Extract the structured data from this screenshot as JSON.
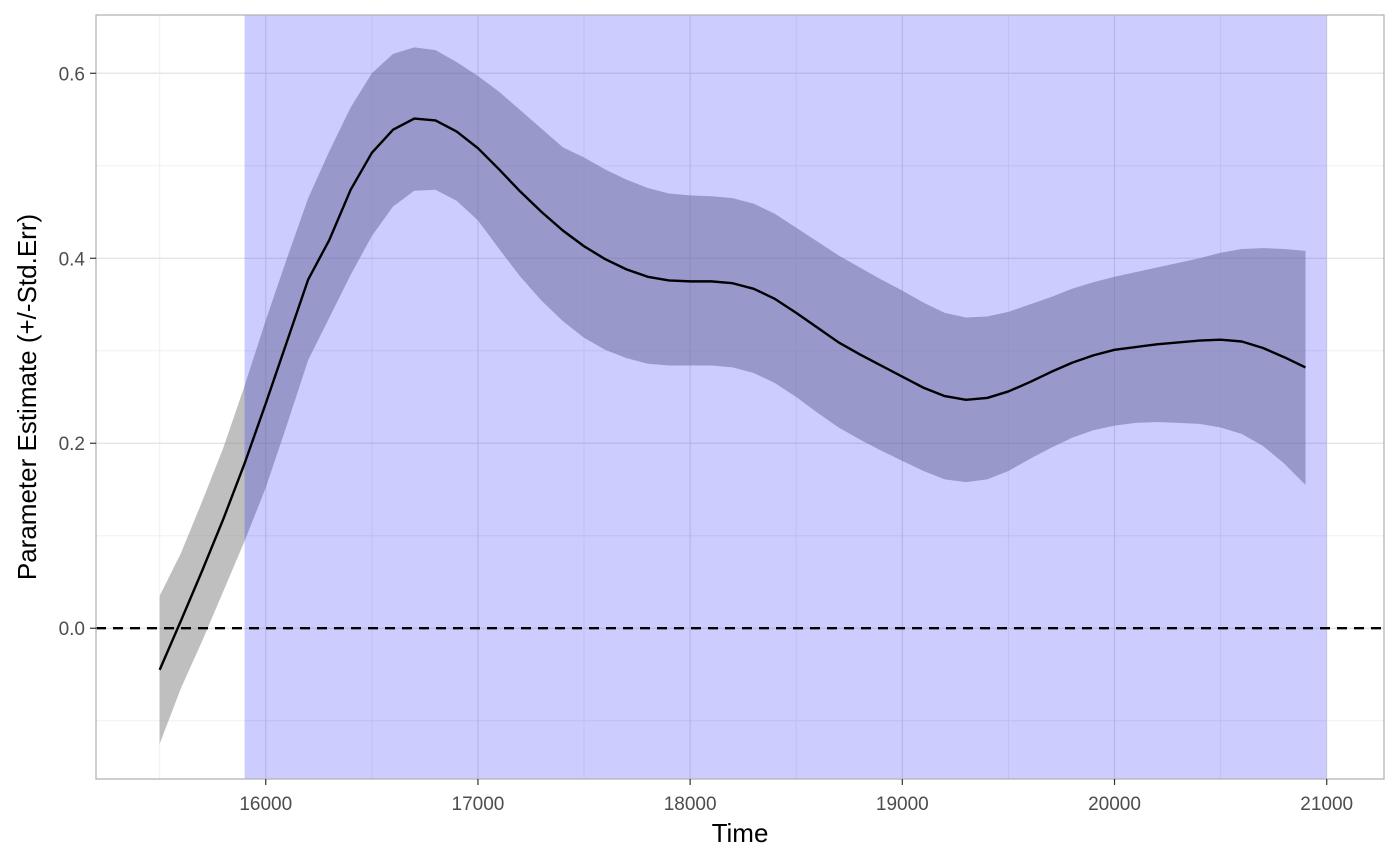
{
  "chart_data": {
    "type": "line",
    "title": "",
    "xlabel": "Time",
    "ylabel": "Parameter Estimate (+/-Std.Err)",
    "xlim": [
      15200,
      21270
    ],
    "ylim": [
      -0.163,
      0.663
    ],
    "x_ticks": [
      16000,
      17000,
      18000,
      19000,
      20000,
      21000
    ],
    "x_tick_labels": [
      "16000",
      "17000",
      "18000",
      "19000",
      "20000",
      "21000"
    ],
    "y_ticks": [
      0.0,
      0.2,
      0.4,
      0.6
    ],
    "y_tick_labels": [
      "0.0",
      "0.2",
      "0.4",
      "0.6"
    ],
    "y_minor_ticks": [
      -0.1,
      0.1,
      0.3,
      0.5
    ],
    "x_minor_ticks": [
      15500,
      16500,
      17500,
      18500,
      19500,
      20500
    ],
    "grid": true,
    "reference_line": {
      "y": 0.0,
      "style": "dashed",
      "color": "#000000"
    },
    "highlight_region": {
      "x_start": 15900,
      "x_end": 21000,
      "color": "#ccccff"
    },
    "series": [
      {
        "x": [
          15500,
          15600,
          15700,
          15800,
          15900,
          16000,
          16100,
          16200,
          16300,
          16400,
          16500,
          16600,
          16700,
          16800,
          16900,
          17000,
          17100,
          17200,
          17300,
          17400,
          17500,
          17600,
          17700,
          17800,
          17900,
          18000,
          18100,
          18200,
          18300,
          18400,
          18500,
          18600,
          18700,
          18800,
          18900,
          19000,
          19100,
          19200,
          19300,
          19400,
          19500,
          19600,
          19700,
          19800,
          19900,
          20000,
          20100,
          20200,
          20300,
          20400,
          20500,
          20600,
          20700,
          20800,
          20900
        ],
        "y": [
          -0.045,
          0.008,
          0.062,
          0.118,
          0.178,
          0.243,
          0.31,
          0.377,
          0.42,
          0.474,
          0.514,
          0.539,
          0.551,
          0.549,
          0.537,
          0.519,
          0.496,
          0.472,
          0.45,
          0.43,
          0.413,
          0.399,
          0.388,
          0.38,
          0.376,
          0.375,
          0.375,
          0.373,
          0.367,
          0.356,
          0.341,
          0.325,
          0.309,
          0.296,
          0.284,
          0.272,
          0.26,
          0.251,
          0.247,
          0.249,
          0.256,
          0.266,
          0.277,
          0.287,
          0.295,
          0.301,
          0.304,
          0.307,
          0.309,
          0.311,
          0.312,
          0.31,
          0.303,
          0.293,
          0.282
        ],
        "lower": [
          -0.125,
          -0.065,
          -0.014,
          0.04,
          0.094,
          0.152,
          0.22,
          0.29,
          0.336,
          0.382,
          0.424,
          0.456,
          0.473,
          0.474,
          0.462,
          0.441,
          0.41,
          0.38,
          0.354,
          0.332,
          0.314,
          0.301,
          0.292,
          0.286,
          0.284,
          0.284,
          0.284,
          0.282,
          0.276,
          0.265,
          0.25,
          0.233,
          0.217,
          0.204,
          0.192,
          0.181,
          0.17,
          0.161,
          0.158,
          0.161,
          0.17,
          0.183,
          0.195,
          0.206,
          0.214,
          0.219,
          0.222,
          0.223,
          0.222,
          0.221,
          0.217,
          0.21,
          0.197,
          0.178,
          0.155
        ],
        "upper": [
          0.035,
          0.081,
          0.137,
          0.195,
          0.262,
          0.333,
          0.4,
          0.465,
          0.516,
          0.563,
          0.6,
          0.621,
          0.628,
          0.625,
          0.612,
          0.597,
          0.58,
          0.56,
          0.54,
          0.52,
          0.509,
          0.496,
          0.485,
          0.476,
          0.47,
          0.468,
          0.467,
          0.465,
          0.459,
          0.448,
          0.433,
          0.418,
          0.403,
          0.39,
          0.377,
          0.365,
          0.352,
          0.341,
          0.336,
          0.337,
          0.342,
          0.35,
          0.358,
          0.367,
          0.374,
          0.38,
          0.385,
          0.39,
          0.395,
          0.4,
          0.406,
          0.41,
          0.411,
          0.41,
          0.408
        ],
        "line_color": "#000000",
        "band_color": "#808080"
      }
    ]
  }
}
